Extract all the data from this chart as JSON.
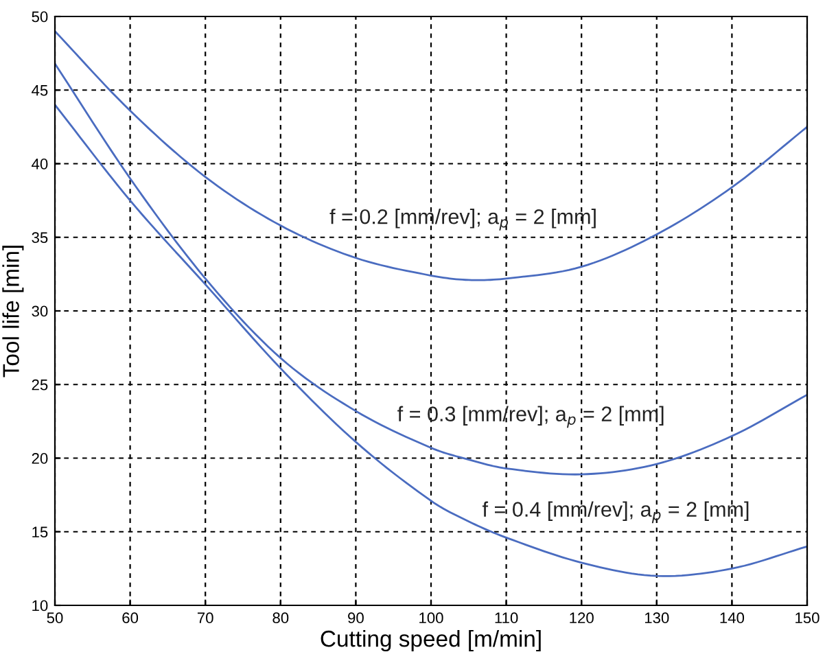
{
  "chart_data": {
    "type": "line",
    "xlabel": "Cutting speed [m/min]",
    "ylabel": "Tool life [min]",
    "x": [
      50,
      60,
      70,
      80,
      90,
      100,
      105,
      110,
      120,
      130,
      140,
      150
    ],
    "series": [
      {
        "color": "#4a6cc0",
        "values": [
          49,
          43.6,
          39.1,
          35.8,
          33.6,
          32.4,
          32.1,
          32.2,
          33.0,
          35.2,
          38.4,
          42.5
        ]
      },
      {
        "color": "#4a6cc0",
        "values": [
          46.8,
          39,
          32.2,
          26.8,
          23.2,
          20.7,
          19.9,
          19.3,
          18.9,
          19.6,
          21.5,
          24.3
        ]
      },
      {
        "color": "#4a6cc0",
        "values": [
          44,
          37.5,
          31.8,
          26.1,
          21.1,
          17.1,
          15.7,
          14.6,
          12.9,
          12.0,
          12.5,
          14.0
        ]
      }
    ],
    "annotations": [
      "f = 0.2 [mm/rev]; a$_{p}$ = 2 [mm]",
      "f = 0.3 [mm/rev]; a$_{p}$ = 2 [mm]",
      "f = 0.4 [mm/rev]; a$_{p}$ = 2 [mm]"
    ],
    "xlim": [
      50,
      150
    ],
    "xticks": [
      50,
      60,
      70,
      80,
      90,
      100,
      110,
      120,
      130,
      140,
      150
    ],
    "ylim": [
      10,
      50
    ],
    "yticks": [
      10,
      15,
      20,
      25,
      30,
      35,
      40,
      45,
      50
    ],
    "grid": true,
    "line_style": "solid",
    "marker": "none"
  }
}
